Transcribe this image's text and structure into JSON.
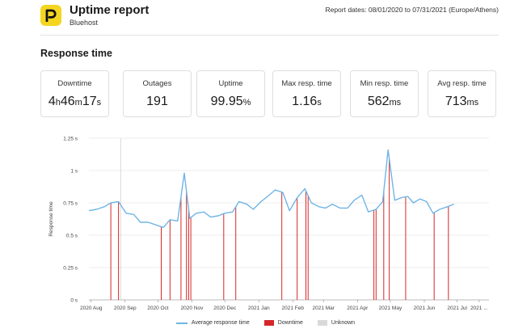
{
  "header": {
    "title": "Uptime report",
    "subtitle": "Bluehost",
    "report_dates": "Report dates: 08/01/2020 to 07/31/2021 (Europe/Athens)"
  },
  "section": {
    "title": "Response time"
  },
  "stats": [
    {
      "label": "Downtime",
      "parts": [
        {
          "t": "4",
          "unit": false
        },
        {
          "t": "h",
          "unit": true
        },
        {
          "t": "46",
          "unit": false
        },
        {
          "t": "m",
          "unit": true
        },
        {
          "t": "17",
          "unit": false
        },
        {
          "t": "s",
          "unit": true
        }
      ]
    },
    {
      "label": "Outages",
      "parts": [
        {
          "t": "191",
          "unit": false
        }
      ]
    },
    {
      "label": "Uptime",
      "parts": [
        {
          "t": "99.95",
          "unit": false
        },
        {
          "t": "%",
          "unit": true
        }
      ]
    },
    {
      "label": "Max resp. time",
      "parts": [
        {
          "t": "1.16",
          "unit": false
        },
        {
          "t": "s",
          "unit": true
        }
      ]
    },
    {
      "label": "Min resp. time",
      "parts": [
        {
          "t": "562",
          "unit": false
        },
        {
          "t": "ms",
          "unit": true
        }
      ]
    },
    {
      "label": "Avg resp. time",
      "parts": [
        {
          "t": "713",
          "unit": false
        },
        {
          "t": "ms",
          "unit": true
        }
      ]
    }
  ],
  "colors": {
    "line": "#6fb5e6",
    "downtime": "#d62728",
    "unknown": "#d9d9d9",
    "logo": "#f4d520"
  },
  "legend": {
    "average": "Average response time",
    "downtime": "Downtime",
    "unknown": "Unknown"
  },
  "chart_data": {
    "type": "line",
    "ylabel": "Response time",
    "xlabel": "",
    "ylim": [
      0,
      1.25
    ],
    "yticks": [
      {
        "v": 0,
        "label": "0 s"
      },
      {
        "v": 0.25,
        "label": "0.25 s"
      },
      {
        "v": 0.5,
        "label": "0.5 s"
      },
      {
        "v": 0.75,
        "label": "0.75 s"
      },
      {
        "v": 1,
        "label": "1 s"
      },
      {
        "v": 1.25,
        "label": "1.25 s"
      }
    ],
    "xlim": [
      0,
      365
    ],
    "xticks": [
      {
        "x": 2,
        "label": "2020 Aug"
      },
      {
        "x": 33,
        "label": "2020 Sep"
      },
      {
        "x": 63,
        "label": "2020 Oct"
      },
      {
        "x": 94,
        "label": "2020 Nov"
      },
      {
        "x": 124,
        "label": "2020 Dec"
      },
      {
        "x": 155,
        "label": "2021 Jan"
      },
      {
        "x": 186,
        "label": "2021 Feb"
      },
      {
        "x": 214,
        "label": "2021 Mar"
      },
      {
        "x": 245,
        "label": "2021 Apr"
      },
      {
        "x": 275,
        "label": "2021 May"
      },
      {
        "x": 306,
        "label": "2021 Jun"
      },
      {
        "x": 336,
        "label": "2021 Jul"
      },
      {
        "x": 356,
        "label": "2021 ..."
      }
    ],
    "series": [
      {
        "name": "Average response time",
        "points": [
          [
            0,
            0.69
          ],
          [
            7,
            0.7
          ],
          [
            14,
            0.72
          ],
          [
            20,
            0.75
          ],
          [
            27,
            0.76
          ],
          [
            34,
            0.67
          ],
          [
            41,
            0.66
          ],
          [
            47,
            0.6
          ],
          [
            54,
            0.6
          ],
          [
            61,
            0.58
          ],
          [
            68,
            0.56
          ],
          [
            74,
            0.62
          ],
          [
            81,
            0.61
          ],
          [
            87,
            0.98
          ],
          [
            92,
            0.63
          ],
          [
            98,
            0.67
          ],
          [
            105,
            0.68
          ],
          [
            111,
            0.64
          ],
          [
            118,
            0.65
          ],
          [
            124,
            0.67
          ],
          [
            131,
            0.68
          ],
          [
            137,
            0.76
          ],
          [
            144,
            0.74
          ],
          [
            150,
            0.7
          ],
          [
            157,
            0.76
          ],
          [
            163,
            0.8
          ],
          [
            170,
            0.85
          ],
          [
            177,
            0.83
          ],
          [
            183,
            0.69
          ],
          [
            190,
            0.79
          ],
          [
            197,
            0.86
          ],
          [
            203,
            0.75
          ],
          [
            210,
            0.72
          ],
          [
            216,
            0.71
          ],
          [
            222,
            0.74
          ],
          [
            229,
            0.71
          ],
          [
            236,
            0.71
          ],
          [
            242,
            0.77
          ],
          [
            249,
            0.81
          ],
          [
            255,
            0.68
          ],
          [
            262,
            0.7
          ],
          [
            268,
            0.76
          ],
          [
            273,
            1.16
          ],
          [
            279,
            0.77
          ],
          [
            285,
            0.79
          ],
          [
            291,
            0.8
          ],
          [
            296,
            0.75
          ],
          [
            302,
            0.78
          ],
          [
            308,
            0.76
          ],
          [
            314,
            0.67
          ],
          [
            320,
            0.7
          ],
          [
            327,
            0.72
          ],
          [
            333,
            0.74
          ]
        ]
      }
    ],
    "downtime_days": [
      20,
      27,
      66,
      74,
      84,
      89,
      91,
      93,
      123,
      134,
      176,
      190,
      198,
      200,
      260,
      262,
      269,
      274,
      289,
      315,
      328
    ],
    "unknown_days": [
      29
    ]
  }
}
